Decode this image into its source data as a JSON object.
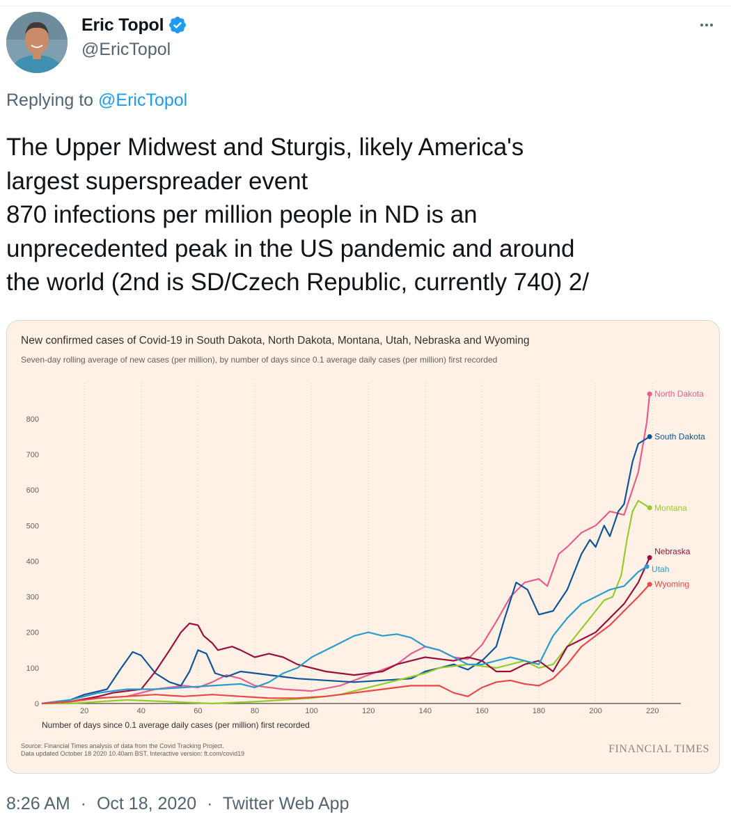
{
  "tweet": {
    "author_name": "Eric Topol",
    "handle": "@EricTopol",
    "replying_prefix": "Replying to",
    "replying_to": "@EricTopol",
    "text": "The Upper Midwest and Sturgis, likely America's\nlargest superspreader event\n870 infections per million people in ND is an\nunprecedented peak in the US pandemic and around\nthe world (2nd is SD/Czech Republic, currently 740) 2/",
    "time": "8:26 AM",
    "date": "Oct 18, 2020",
    "source": "Twitter Web App",
    "separator": "·"
  },
  "icons": {
    "verified": "verified-badge-icon",
    "more": "more-options-icon"
  },
  "colors": {
    "accent": "#1d9bf0",
    "chart_background": "#fff1e5"
  },
  "chart_data": {
    "type": "line",
    "title": "New confirmed cases of Covid-19 in South Dakota, North Dakota, Montana, Utah, Nebraska and Wyoming",
    "subtitle": "Seven-day rolling average of new cases (per million), by number of days since 0.1 average daily cases (per million) first recorded",
    "xlabel": "Number of days since 0.1 average daily cases (per million) first recorded",
    "ylabel": "",
    "xlim": [
      5,
      230
    ],
    "ylim": [
      0,
      880
    ],
    "xticks": [
      20,
      40,
      60,
      80,
      100,
      120,
      140,
      160,
      180,
      200,
      220
    ],
    "yticks": [
      0,
      100,
      200,
      300,
      400,
      500,
      600,
      700,
      800
    ],
    "grid": "vertical-dotted",
    "source_note": "Source: Financial Times analysis of data from the Covid Tracking Project.\nData updated October 18 2020 10.40am BST. Interactive version: ft.com/covid19",
    "brand": "FINANCIAL TIMES",
    "series": [
      {
        "name": "North Dakota",
        "color": "#e95d8c",
        "points": [
          [
            5,
            0
          ],
          [
            15,
            5
          ],
          [
            25,
            15
          ],
          [
            35,
            20
          ],
          [
            45,
            40
          ],
          [
            55,
            50
          ],
          [
            60,
            45
          ],
          [
            65,
            60
          ],
          [
            70,
            80
          ],
          [
            75,
            70
          ],
          [
            80,
            50
          ],
          [
            90,
            40
          ],
          [
            100,
            35
          ],
          [
            110,
            50
          ],
          [
            120,
            80
          ],
          [
            130,
            110
          ],
          [
            135,
            140
          ],
          [
            140,
            160
          ],
          [
            145,
            150
          ],
          [
            150,
            130
          ],
          [
            155,
            125
          ],
          [
            160,
            165
          ],
          [
            165,
            230
          ],
          [
            170,
            300
          ],
          [
            175,
            340
          ],
          [
            180,
            350
          ],
          [
            183,
            330
          ],
          [
            187,
            420
          ],
          [
            190,
            440
          ],
          [
            195,
            480
          ],
          [
            200,
            500
          ],
          [
            205,
            540
          ],
          [
            210,
            530
          ],
          [
            215,
            650
          ],
          [
            218,
            790
          ],
          [
            219,
            870
          ]
        ]
      },
      {
        "name": "South Dakota",
        "color": "#0f5499",
        "points": [
          [
            5,
            0
          ],
          [
            10,
            5
          ],
          [
            15,
            10
          ],
          [
            20,
            25
          ],
          [
            28,
            40
          ],
          [
            33,
            100
          ],
          [
            37,
            145
          ],
          [
            40,
            135
          ],
          [
            45,
            85
          ],
          [
            50,
            60
          ],
          [
            54,
            50
          ],
          [
            57,
            90
          ],
          [
            60,
            150
          ],
          [
            63,
            140
          ],
          [
            66,
            85
          ],
          [
            70,
            75
          ],
          [
            75,
            90
          ],
          [
            80,
            85
          ],
          [
            85,
            80
          ],
          [
            90,
            75
          ],
          [
            95,
            70
          ],
          [
            105,
            65
          ],
          [
            115,
            60
          ],
          [
            125,
            65
          ],
          [
            135,
            70
          ],
          [
            140,
            90
          ],
          [
            145,
            100
          ],
          [
            150,
            110
          ],
          [
            155,
            95
          ],
          [
            160,
            120
          ],
          [
            165,
            160
          ],
          [
            168,
            240
          ],
          [
            172,
            340
          ],
          [
            176,
            320
          ],
          [
            180,
            250
          ],
          [
            185,
            260
          ],
          [
            190,
            320
          ],
          [
            195,
            420
          ],
          [
            198,
            460
          ],
          [
            200,
            440
          ],
          [
            203,
            500
          ],
          [
            205,
            470
          ],
          [
            208,
            540
          ],
          [
            210,
            560
          ],
          [
            213,
            680
          ],
          [
            215,
            730
          ],
          [
            217,
            740
          ],
          [
            219,
            750
          ]
        ]
      },
      {
        "name": "Montana",
        "color": "#96cc28",
        "points": [
          [
            5,
            0
          ],
          [
            15,
            0
          ],
          [
            25,
            5
          ],
          [
            35,
            10
          ],
          [
            50,
            5
          ],
          [
            65,
            0
          ],
          [
            80,
            5
          ],
          [
            90,
            10
          ],
          [
            100,
            15
          ],
          [
            110,
            25
          ],
          [
            120,
            45
          ],
          [
            125,
            55
          ],
          [
            130,
            65
          ],
          [
            135,
            75
          ],
          [
            140,
            85
          ],
          [
            145,
            100
          ],
          [
            150,
            105
          ],
          [
            155,
            110
          ],
          [
            160,
            105
          ],
          [
            165,
            100
          ],
          [
            170,
            110
          ],
          [
            175,
            120
          ],
          [
            180,
            100
          ],
          [
            185,
            110
          ],
          [
            190,
            160
          ],
          [
            195,
            210
          ],
          [
            200,
            260
          ],
          [
            203,
            290
          ],
          [
            206,
            300
          ],
          [
            209,
            360
          ],
          [
            211,
            460
          ],
          [
            213,
            540
          ],
          [
            215,
            570
          ],
          [
            217,
            560
          ],
          [
            219,
            550
          ]
        ]
      },
      {
        "name": "Nebraska",
        "color": "#990f3d",
        "points": [
          [
            5,
            0
          ],
          [
            15,
            5
          ],
          [
            25,
            20
          ],
          [
            30,
            30
          ],
          [
            40,
            40
          ],
          [
            45,
            90
          ],
          [
            50,
            150
          ],
          [
            54,
            200
          ],
          [
            57,
            225
          ],
          [
            60,
            220
          ],
          [
            62,
            190
          ],
          [
            65,
            170
          ],
          [
            67,
            150
          ],
          [
            72,
            160
          ],
          [
            75,
            150
          ],
          [
            80,
            130
          ],
          [
            85,
            140
          ],
          [
            90,
            130
          ],
          [
            95,
            110
          ],
          [
            105,
            90
          ],
          [
            115,
            80
          ],
          [
            125,
            90
          ],
          [
            130,
            110
          ],
          [
            135,
            120
          ],
          [
            140,
            130
          ],
          [
            145,
            125
          ],
          [
            150,
            120
          ],
          [
            155,
            130
          ],
          [
            160,
            120
          ],
          [
            165,
            90
          ],
          [
            170,
            90
          ],
          [
            175,
            110
          ],
          [
            180,
            120
          ],
          [
            185,
            90
          ],
          [
            190,
            160
          ],
          [
            195,
            180
          ],
          [
            200,
            200
          ],
          [
            205,
            240
          ],
          [
            210,
            280
          ],
          [
            215,
            340
          ],
          [
            219,
            410
          ]
        ]
      },
      {
        "name": "Utah",
        "color": "#2b9bcd",
        "points": [
          [
            5,
            0
          ],
          [
            15,
            10
          ],
          [
            25,
            30
          ],
          [
            35,
            40
          ],
          [
            45,
            40
          ],
          [
            55,
            45
          ],
          [
            65,
            50
          ],
          [
            75,
            55
          ],
          [
            80,
            45
          ],
          [
            85,
            60
          ],
          [
            90,
            85
          ],
          [
            95,
            100
          ],
          [
            100,
            130
          ],
          [
            110,
            170
          ],
          [
            115,
            190
          ],
          [
            120,
            200
          ],
          [
            125,
            190
          ],
          [
            130,
            195
          ],
          [
            135,
            185
          ],
          [
            140,
            160
          ],
          [
            145,
            150
          ],
          [
            150,
            130
          ],
          [
            155,
            110
          ],
          [
            160,
            110
          ],
          [
            165,
            120
          ],
          [
            170,
            130
          ],
          [
            175,
            120
          ],
          [
            180,
            110
          ],
          [
            185,
            190
          ],
          [
            190,
            240
          ],
          [
            195,
            280
          ],
          [
            200,
            300
          ],
          [
            205,
            320
          ],
          [
            210,
            330
          ],
          [
            215,
            370
          ],
          [
            218,
            385
          ]
        ]
      },
      {
        "name": "Wyoming",
        "color": "#eb4747",
        "points": [
          [
            5,
            0
          ],
          [
            15,
            5
          ],
          [
            25,
            15
          ],
          [
            35,
            20
          ],
          [
            45,
            25
          ],
          [
            55,
            20
          ],
          [
            65,
            25
          ],
          [
            75,
            20
          ],
          [
            85,
            15
          ],
          [
            95,
            15
          ],
          [
            105,
            20
          ],
          [
            115,
            30
          ],
          [
            125,
            40
          ],
          [
            135,
            50
          ],
          [
            145,
            50
          ],
          [
            150,
            30
          ],
          [
            155,
            20
          ],
          [
            160,
            45
          ],
          [
            165,
            60
          ],
          [
            170,
            65
          ],
          [
            175,
            55
          ],
          [
            180,
            50
          ],
          [
            185,
            70
          ],
          [
            190,
            110
          ],
          [
            195,
            160
          ],
          [
            200,
            190
          ],
          [
            205,
            220
          ],
          [
            210,
            260
          ],
          [
            215,
            300
          ],
          [
            219,
            335
          ]
        ]
      }
    ]
  }
}
